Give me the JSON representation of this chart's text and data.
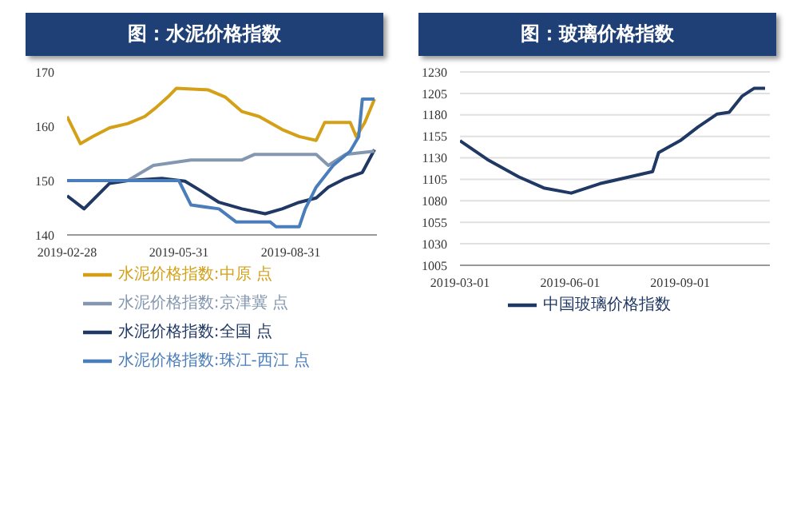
{
  "chart_data": [
    {
      "type": "line",
      "title": "图：水泥价格指数",
      "xlim": [
        "2019-02-28",
        "2019-11-10"
      ],
      "xticks": [
        "2019-02-28",
        "2019-05-31",
        "2019-08-31"
      ],
      "ylim": [
        140,
        170
      ],
      "yticks": [
        140,
        150,
        160,
        170
      ],
      "grid": false,
      "legend": "bottom",
      "series": [
        {
          "name": "水泥价格指数:全国 点",
          "color": "#1f3864",
          "x": [
            "2019-02-28",
            "2019-03-14",
            "2019-04-04",
            "2019-04-19",
            "2019-05-17",
            "2019-06-05",
            "2019-06-19",
            "2019-07-03",
            "2019-07-22",
            "2019-08-10",
            "2019-08-24",
            "2019-09-07",
            "2019-09-21",
            "2019-10-01",
            "2019-10-15",
            "2019-10-29",
            "2019-11-08"
          ],
          "values": [
            147.2,
            144.8,
            149.5,
            150,
            150.4,
            149.9,
            148,
            146,
            144.8,
            143.9,
            144.8,
            146,
            146.8,
            148.8,
            150.4,
            151.5,
            155.7
          ]
        },
        {
          "name": "水泥价格指数:中原 点",
          "color": "#d4a017",
          "x": [
            "2019-02-28",
            "2019-03-11",
            "2019-03-21",
            "2019-04-04",
            "2019-04-19",
            "2019-05-03",
            "2019-05-12",
            "2019-05-22",
            "2019-05-29",
            "2019-06-24",
            "2019-07-08",
            "2019-07-22",
            "2019-08-05",
            "2019-08-24",
            "2019-09-07",
            "2019-09-21",
            "2019-09-28",
            "2019-10-19",
            "2019-10-24",
            "2019-10-31",
            "2019-11-08"
          ],
          "values": [
            161.8,
            156.8,
            158.1,
            159.7,
            160.5,
            161.8,
            163.4,
            165.4,
            167,
            166.7,
            165.4,
            162.7,
            161.8,
            159.4,
            158.1,
            157.4,
            160.7,
            160.7,
            158.1,
            160.7,
            165
          ]
        },
        {
          "name": "水泥价格指数:京津冀 点",
          "color": "#8497b0",
          "x": [
            "2019-02-28",
            "2019-04-19",
            "2019-05-10",
            "2019-06-10",
            "2019-07-22",
            "2019-08-01",
            "2019-09-21",
            "2019-10-01",
            "2019-10-15",
            "2019-11-08"
          ],
          "values": [
            150,
            150,
            152.8,
            153.8,
            153.8,
            154.8,
            154.8,
            152.8,
            154.8,
            155.4
          ]
        },
        {
          "name": "水泥价格指数:珠江-西江 点",
          "color": "#4a7ebb",
          "x": [
            "2019-02-28",
            "2019-05-31",
            "2019-06-10",
            "2019-07-03",
            "2019-07-17",
            "2019-08-14",
            "2019-08-19",
            "2019-09-07",
            "2019-09-12",
            "2019-09-21",
            "2019-10-05",
            "2019-10-19",
            "2019-10-26",
            "2019-10-29",
            "2019-11-08"
          ],
          "values": [
            150,
            150,
            145.5,
            144.8,
            142.4,
            142.4,
            141.5,
            141.5,
            144.8,
            148.8,
            152.8,
            155.4,
            158.1,
            165,
            165
          ]
        }
      ]
    },
    {
      "type": "line",
      "title": "图：玻璃价格指数",
      "xlim": [
        "2019-03-01",
        "2019-11-15"
      ],
      "xticks": [
        "2019-03-01",
        "2019-06-01",
        "2019-09-01"
      ],
      "ylim": [
        1005,
        1230
      ],
      "yticks": [
        1005,
        1030,
        1055,
        1080,
        1105,
        1130,
        1155,
        1180,
        1205,
        1230
      ],
      "grid": "y",
      "legend": "bottom",
      "series": [
        {
          "name": "中国玻璃价格指数",
          "color": "#1f3864",
          "x": [
            "2019-03-01",
            "2019-03-24",
            "2019-04-19",
            "2019-05-10",
            "2019-06-02",
            "2019-06-26",
            "2019-07-21",
            "2019-08-09",
            "2019-08-14",
            "2019-09-01",
            "2019-09-16",
            "2019-10-02",
            "2019-10-12",
            "2019-10-23",
            "2019-11-02",
            "2019-11-11"
          ],
          "values": [
            1150,
            1128,
            1108,
            1095,
            1089,
            1100,
            1108,
            1114,
            1136,
            1150,
            1166,
            1181,
            1183,
            1202,
            1211,
            1211
          ]
        }
      ]
    }
  ]
}
